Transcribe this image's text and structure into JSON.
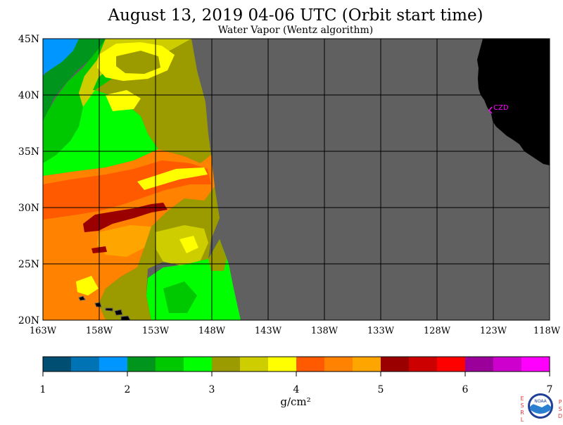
{
  "title": "August 13, 2019  04-06 UTC  (Orbit start time)",
  "subtitle": "Water Vapor (Wentz algorithm)",
  "map": {
    "lat_labels": [
      "45N",
      "40N",
      "35N",
      "30N",
      "25N",
      "20N"
    ],
    "lon_labels": [
      "163W",
      "158W",
      "153W",
      "148W",
      "143W",
      "138W",
      "133W",
      "128W",
      "123W",
      "118W"
    ],
    "lat_range": [
      20,
      45
    ],
    "lon_range": [
      -163,
      -118
    ],
    "station_label": "CZD",
    "colors": {
      "no_data": "#606060",
      "land": "#000000",
      "grid": "#000000",
      "station": "#ff00ff"
    }
  },
  "colorbar": {
    "tick_labels": [
      "1",
      "2",
      "3",
      "4",
      "5",
      "6",
      "7"
    ],
    "unit": "g/cm²",
    "colors": [
      "#004f73",
      "#0073b4",
      "#0096ff",
      "#00961e",
      "#00c800",
      "#00ff00",
      "#9b9b00",
      "#cdcd00",
      "#ffff00",
      "#ff5a00",
      "#ff8200",
      "#ffa500",
      "#9b0000",
      "#cd0000",
      "#ff0000",
      "#9b009b",
      "#cd00cd",
      "#ff00ff"
    ]
  },
  "logos": {
    "left": "ESRL",
    "right": "PSD",
    "center": "NOAA"
  }
}
